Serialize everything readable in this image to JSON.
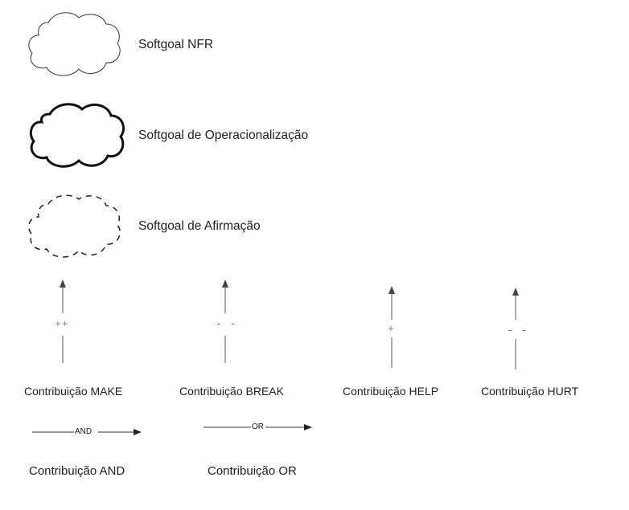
{
  "legend": {
    "softgoals": [
      {
        "label": "Softgoal NFR"
      },
      {
        "label": "Softgoal de Operacionalização"
      },
      {
        "label": "Softgoal de Afirmação"
      }
    ],
    "contributions": [
      {
        "label": "Contribuição MAKE",
        "symbol": "++",
        "color": "#4caf50"
      },
      {
        "label": "Contribuição BREAK",
        "symbol": "- -",
        "color": "#e53935"
      },
      {
        "label": "Contribuição HELP",
        "symbol": "+",
        "color": "#4caf50"
      },
      {
        "label": "Contribuição HURT",
        "symbol": "- -",
        "color": "#e53935"
      }
    ],
    "logical": [
      {
        "label": "Contribuição AND",
        "tag": "AND"
      },
      {
        "label": "Contribuição OR",
        "tag": "OR"
      }
    ]
  }
}
